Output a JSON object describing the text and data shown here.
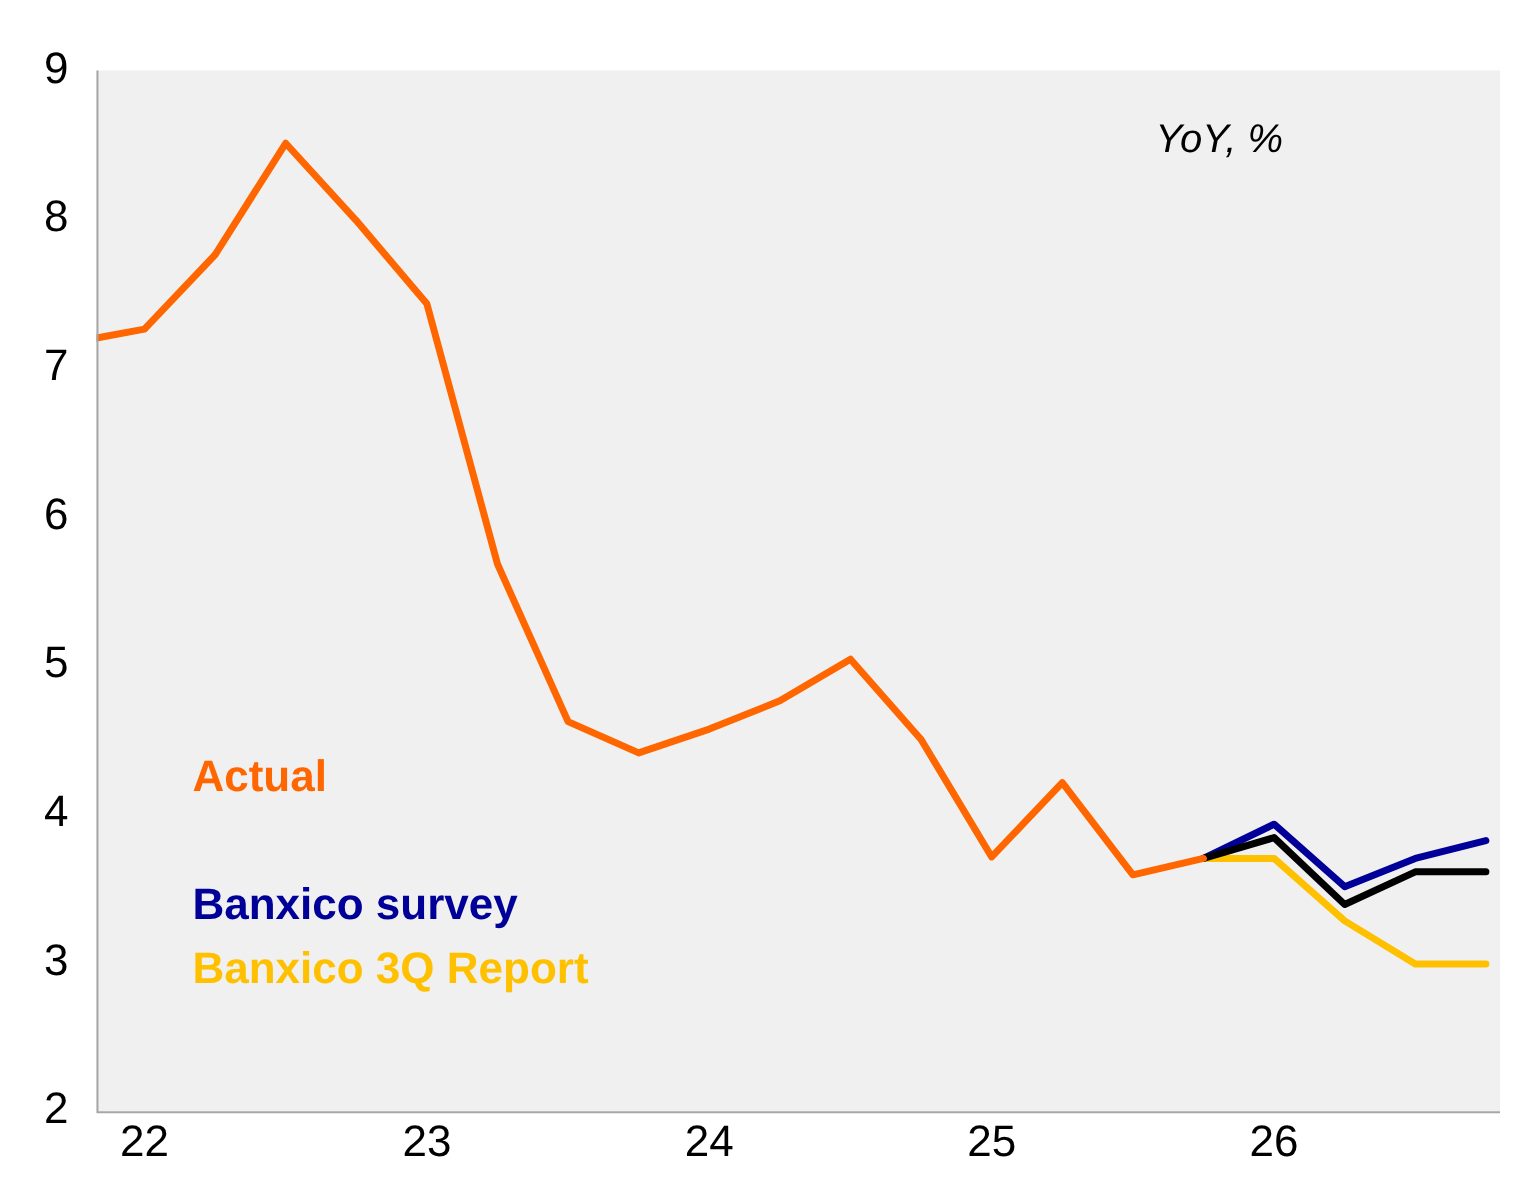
{
  "chart_data": {
    "type": "line",
    "annotations": [
      "YoY, %"
    ],
    "xlim": [
      21.83,
      26.8
    ],
    "xticks": [
      22,
      23,
      24,
      25,
      26
    ],
    "ylim": [
      2,
      9
    ],
    "yticks": [
      2,
      3,
      4,
      5,
      6,
      7,
      8,
      9
    ],
    "grid": false,
    "legend": "bottom left",
    "marker": "none",
    "line_style": "solid",
    "series": [
      {
        "name": "Actual",
        "color": "#ff6600",
        "x": [
          21.83,
          22,
          22.25,
          22.5,
          22.75,
          23,
          23.25,
          23.5,
          23.75,
          24,
          24.25,
          24.5,
          24.75,
          25,
          25.25,
          25.5,
          25.75
        ],
        "values": [
          7.2,
          7.26,
          7.76,
          8.51,
          7.99,
          7.43,
          5.68,
          4.62,
          4.41,
          4.57,
          4.76,
          5.04,
          4.5,
          3.71,
          4.21,
          3.59,
          3.7
        ]
      },
      {
        "color": "#000000",
        "x": [
          25.75,
          26,
          26.25,
          26.5,
          26.75
        ],
        "values": [
          3.7,
          3.84,
          3.39,
          3.61,
          3.61
        ]
      },
      {
        "name": "Banxico survey",
        "color": "#000099",
        "x": [
          25.75,
          26,
          26.25,
          26.5,
          26.75
        ],
        "values": [
          3.7,
          3.93,
          3.51,
          3.7,
          3.82
        ]
      },
      {
        "name": "Banxico 3Q Report",
        "color": "#ffc000",
        "x": [
          25.75,
          26,
          26.25,
          26.5,
          26.75
        ],
        "values": [
          3.7,
          3.7,
          3.28,
          2.99,
          2.99
        ]
      }
    ]
  }
}
